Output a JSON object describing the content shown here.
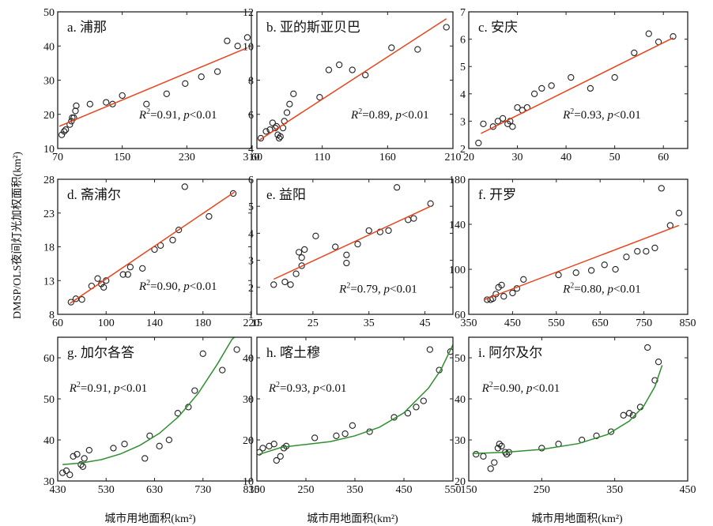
{
  "ylabel": "DMSP/OLS夜间灯光加权面积(km²)",
  "xlabel": "城市用地面积(km²)",
  "colors": {
    "fit_linear": "#e8441c",
    "fit_poly": "#2f8f2f",
    "diagonal": "#1a1a1a",
    "points": "#222222"
  },
  "chart_data": [
    {
      "type": "scatter",
      "title": "a. 浦那",
      "fit": "linear",
      "xlim": [
        70,
        310
      ],
      "ylim": [
        10,
        50
      ],
      "xticks": [
        70,
        150,
        230,
        310
      ],
      "yticks": [
        10,
        20,
        30,
        40,
        50
      ],
      "r2": "0.91",
      "p": "0.01",
      "points": [
        [
          75,
          14
        ],
        [
          78,
          15
        ],
        [
          80,
          15.5
        ],
        [
          85,
          17
        ],
        [
          87,
          18
        ],
        [
          88,
          19
        ],
        [
          90,
          19
        ],
        [
          92,
          21
        ],
        [
          93,
          22.5
        ],
        [
          110,
          23
        ],
        [
          130,
          23.5
        ],
        [
          138,
          23
        ],
        [
          150,
          25.5
        ],
        [
          180,
          23
        ],
        [
          205,
          26
        ],
        [
          228,
          29
        ],
        [
          248,
          31
        ],
        [
          268,
          32.5
        ],
        [
          280,
          41.5
        ],
        [
          293,
          40
        ],
        [
          305,
          42.5
        ]
      ],
      "fit_line": [
        [
          72,
          16.5
        ],
        [
          305,
          39.5
        ]
      ]
    },
    {
      "type": "scatter",
      "title": "b. 亚的斯亚贝巴",
      "fit": "linear",
      "xlim": [
        60,
        210
      ],
      "ylim": [
        4,
        12
      ],
      "xticks": [
        60,
        110,
        160,
        210
      ],
      "yticks": [
        4,
        6,
        8,
        10,
        12
      ],
      "r2": "0.89",
      "p": "0.01",
      "points": [
        [
          63,
          4.6
        ],
        [
          67,
          5
        ],
        [
          70,
          5.1
        ],
        [
          72,
          5.5
        ],
        [
          74,
          5.2
        ],
        [
          75,
          5.3
        ],
        [
          76,
          4.8
        ],
        [
          77,
          4.6
        ],
        [
          78,
          4.7
        ],
        [
          80,
          5.2
        ],
        [
          81,
          5.6
        ],
        [
          83,
          6.1
        ],
        [
          85,
          6.6
        ],
        [
          88,
          7.2
        ],
        [
          108,
          7
        ],
        [
          115,
          8.6
        ],
        [
          123,
          8.9
        ],
        [
          133,
          8.6
        ],
        [
          143,
          8.3
        ],
        [
          163,
          9.9
        ],
        [
          183,
          9.8
        ],
        [
          205,
          11.1
        ]
      ],
      "fit_line": [
        [
          62,
          4.5
        ],
        [
          205,
          11.6
        ]
      ]
    },
    {
      "type": "scatter",
      "title": "c. 安庆",
      "fit": "linear",
      "xlim": [
        20,
        65
      ],
      "ylim": [
        2,
        7
      ],
      "xticks": [
        20,
        30,
        40,
        50,
        60
      ],
      "yticks": [
        2,
        3,
        4,
        5,
        6,
        7
      ],
      "r2": "0.93",
      "p": "0.01",
      "points": [
        [
          22,
          2.2
        ],
        [
          23,
          2.9
        ],
        [
          25,
          2.8
        ],
        [
          26,
          3
        ],
        [
          27,
          3.1
        ],
        [
          28,
          2.9
        ],
        [
          28.5,
          3
        ],
        [
          29,
          2.8
        ],
        [
          30,
          3.5
        ],
        [
          31,
          3.4
        ],
        [
          32,
          3.5
        ],
        [
          33.5,
          4
        ],
        [
          35,
          4.2
        ],
        [
          37,
          4.3
        ],
        [
          41,
          4.6
        ],
        [
          45,
          4.2
        ],
        [
          50,
          4.6
        ],
        [
          54,
          5.5
        ],
        [
          57,
          6.2
        ],
        [
          59,
          5.9
        ],
        [
          62,
          6.1
        ]
      ],
      "fit_line": [
        [
          22.5,
          2.55
        ],
        [
          62,
          6.05
        ]
      ]
    },
    {
      "type": "scatter",
      "title": "d. 斋浦尔",
      "fit": "linear",
      "xlim": [
        60,
        220
      ],
      "ylim": [
        8,
        28
      ],
      "xticks": [
        60,
        100,
        140,
        180,
        220
      ],
      "yticks": [
        8,
        13,
        18,
        23,
        28
      ],
      "r2": "0.90",
      "p": "0.01",
      "points": [
        [
          71,
          9.8
        ],
        [
          75,
          10.3
        ],
        [
          80,
          10.2
        ],
        [
          88,
          12.2
        ],
        [
          93,
          13.3
        ],
        [
          96,
          12.5
        ],
        [
          98,
          12
        ],
        [
          100,
          13
        ],
        [
          114,
          13.9
        ],
        [
          118,
          13.9
        ],
        [
          120,
          15
        ],
        [
          130,
          14.8
        ],
        [
          140,
          17.6
        ],
        [
          145,
          18.2
        ],
        [
          155,
          19
        ],
        [
          160,
          20.5
        ],
        [
          165,
          26.9
        ],
        [
          185,
          22.5
        ],
        [
          205,
          25.9
        ]
      ],
      "fit_line": [
        [
          70,
          9.6
        ],
        [
          206,
          26.1
        ]
      ]
    },
    {
      "type": "scatter",
      "title": "e. 益阳",
      "fit": "linear",
      "xlim": [
        15,
        50
      ],
      "ylim": [
        1,
        6
      ],
      "xticks": [
        15,
        25,
        35,
        45
      ],
      "yticks": [
        1,
        2,
        3,
        4,
        5,
        6
      ],
      "r2": "0.79",
      "p": "0.01",
      "points": [
        [
          18,
          2.1
        ],
        [
          20,
          2.2
        ],
        [
          21,
          2.1
        ],
        [
          22,
          2.5
        ],
        [
          22.5,
          3.3
        ],
        [
          23,
          2.8
        ],
        [
          23,
          3.1
        ],
        [
          23.5,
          3.4
        ],
        [
          25.5,
          3.9
        ],
        [
          29,
          3.5
        ],
        [
          31,
          3.2
        ],
        [
          31,
          2.9
        ],
        [
          33,
          3.6
        ],
        [
          35,
          4.1
        ],
        [
          37,
          4.05
        ],
        [
          38.5,
          4.1
        ],
        [
          40,
          5.7
        ],
        [
          42,
          4.5
        ],
        [
          43,
          4.55
        ],
        [
          46,
          5.1
        ]
      ],
      "fit_line": [
        [
          18,
          2.3
        ],
        [
          46,
          5.0
        ]
      ]
    },
    {
      "type": "scatter",
      "title": "f. 开罗",
      "fit": "linear",
      "xlim": [
        350,
        850
      ],
      "ylim": [
        60,
        180
      ],
      "xticks": [
        350,
        450,
        550,
        650,
        750,
        850
      ],
      "yticks": [
        60,
        100,
        140,
        180
      ],
      "r2": "0.80",
      "p": "0.01",
      "points": [
        [
          392,
          73
        ],
        [
          400,
          73
        ],
        [
          405,
          74
        ],
        [
          412,
          78
        ],
        [
          418,
          84
        ],
        [
          425,
          86
        ],
        [
          430,
          76
        ],
        [
          450,
          79
        ],
        [
          460,
          83
        ],
        [
          475,
          91
        ],
        [
          555,
          95
        ],
        [
          595,
          97
        ],
        [
          630,
          99
        ],
        [
          660,
          104
        ],
        [
          685,
          100
        ],
        [
          710,
          111
        ],
        [
          735,
          116
        ],
        [
          755,
          116
        ],
        [
          775,
          119
        ],
        [
          790,
          172
        ],
        [
          810,
          139
        ],
        [
          830,
          150
        ]
      ],
      "fit_line": [
        [
          385,
          73
        ],
        [
          830,
          139
        ]
      ]
    },
    {
      "type": "scatter",
      "title": "g. 加尔各答",
      "fit": "polynomial",
      "xlim": [
        430,
        830
      ],
      "ylim": [
        30,
        65
      ],
      "xticks": [
        430,
        530,
        630,
        730,
        830
      ],
      "yticks": [
        30,
        40,
        50,
        60
      ],
      "r2": "0.91",
      "p": "0.01",
      "points": [
        [
          440,
          32
        ],
        [
          448,
          32.5
        ],
        [
          455,
          31.5
        ],
        [
          462,
          36
        ],
        [
          470,
          36.5
        ],
        [
          478,
          34
        ],
        [
          482,
          33.5
        ],
        [
          485,
          35.5
        ],
        [
          495,
          37.5
        ],
        [
          545,
          38
        ],
        [
          568,
          39
        ],
        [
          610,
          35.5
        ],
        [
          620,
          41
        ],
        [
          640,
          38.5
        ],
        [
          660,
          40
        ],
        [
          678,
          46.5
        ],
        [
          700,
          48
        ],
        [
          713,
          52
        ],
        [
          730,
          61
        ],
        [
          770,
          57
        ],
        [
          800,
          62
        ]
      ],
      "fit_line": [
        [
          440,
          34
        ],
        [
          480,
          34.4
        ],
        [
          520,
          35.2
        ],
        [
          560,
          36.6
        ],
        [
          600,
          38.7
        ],
        [
          640,
          41.6
        ],
        [
          680,
          45.7
        ],
        [
          720,
          51.3
        ],
        [
          760,
          58.5
        ],
        [
          790,
          64.5
        ],
        [
          795,
          65
        ]
      ]
    },
    {
      "type": "scatter",
      "title": "h. 喀土穆",
      "fit": "polynomial",
      "xlim": [
        150,
        550
      ],
      "ylim": [
        10,
        45
      ],
      "xticks": [
        150,
        250,
        350,
        450,
        550
      ],
      "yticks": [
        10,
        20,
        30,
        40
      ],
      "r2": "0.93",
      "p": "0.01",
      "points": [
        [
          155,
          17
        ],
        [
          162,
          18
        ],
        [
          175,
          18.5
        ],
        [
          185,
          19
        ],
        [
          190,
          15
        ],
        [
          198,
          16
        ],
        [
          205,
          18
        ],
        [
          210,
          18.5
        ],
        [
          268,
          20.5
        ],
        [
          312,
          21
        ],
        [
          330,
          21.5
        ],
        [
          345,
          23.5
        ],
        [
          380,
          22
        ],
        [
          430,
          25.5
        ],
        [
          458,
          26.5
        ],
        [
          475,
          28
        ],
        [
          490,
          29.5
        ],
        [
          503,
          42
        ],
        [
          522,
          37
        ],
        [
          545,
          41.5
        ]
      ],
      "fit_line": [
        [
          155,
          16.5
        ],
        [
          200,
          18.2
        ],
        [
          250,
          18.9
        ],
        [
          300,
          19.6
        ],
        [
          350,
          21
        ],
        [
          400,
          23.1
        ],
        [
          450,
          26.6
        ],
        [
          500,
          32.6
        ],
        [
          525,
          37
        ],
        [
          550,
          43.2
        ]
      ]
    },
    {
      "type": "scatter",
      "title": "i. 阿尔及尔",
      "fit": "polynomial",
      "xlim": [
        150,
        450
      ],
      "ylim": [
        20,
        55
      ],
      "xticks": [
        150,
        250,
        350,
        450
      ],
      "yticks": [
        20,
        30,
        40,
        50
      ],
      "r2": "0.90",
      "p": "0.01",
      "points": [
        [
          160,
          26.5
        ],
        [
          170,
          26
        ],
        [
          180,
          23
        ],
        [
          185,
          24.5
        ],
        [
          190,
          28
        ],
        [
          192,
          29
        ],
        [
          195,
          28.5
        ],
        [
          200,
          27
        ],
        [
          202,
          26.5
        ],
        [
          205,
          27
        ],
        [
          250,
          28
        ],
        [
          273,
          29
        ],
        [
          305,
          30
        ],
        [
          325,
          31
        ],
        [
          345,
          32
        ],
        [
          362,
          36
        ],
        [
          370,
          36.5
        ],
        [
          375,
          36
        ],
        [
          385,
          38
        ],
        [
          395,
          52.5
        ],
        [
          405,
          44.5
        ],
        [
          410,
          49
        ]
      ],
      "fit_line": [
        [
          155,
          26.7
        ],
        [
          200,
          27
        ],
        [
          250,
          27.7
        ],
        [
          300,
          29.1
        ],
        [
          340,
          31.3
        ],
        [
          370,
          34.6
        ],
        [
          390,
          38.3
        ],
        [
          405,
          43
        ],
        [
          415,
          48.2
        ]
      ]
    }
  ]
}
